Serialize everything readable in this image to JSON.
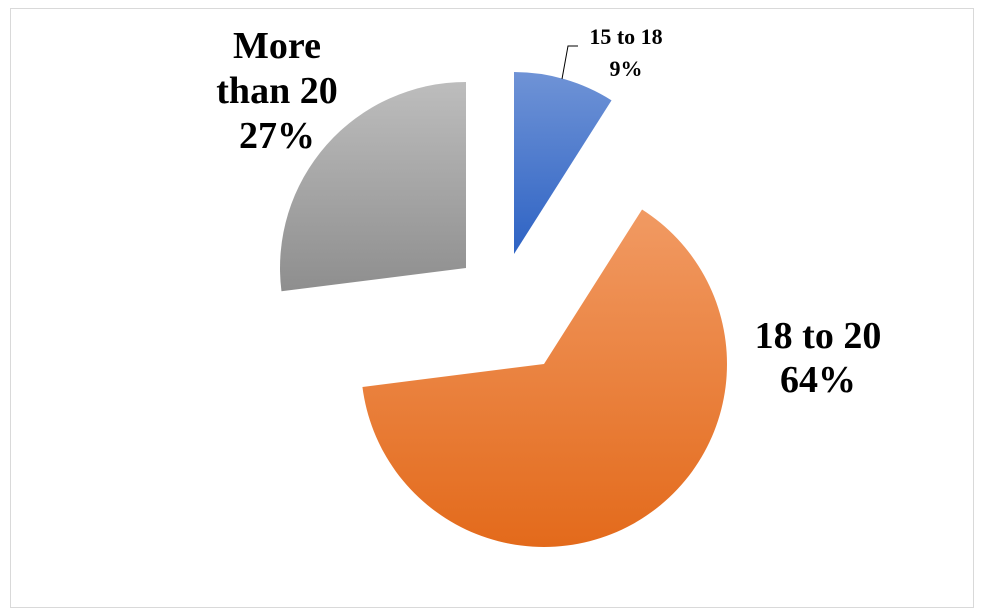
{
  "chart_data": {
    "type": "pie",
    "exploded": true,
    "title": "",
    "slices": [
      {
        "label": "15 to 18",
        "percent_label": "9%",
        "value": 9,
        "color": "#4472c4"
      },
      {
        "label": "18 to 20",
        "percent_label": "64%",
        "value": 64,
        "color": "#ed7d31"
      },
      {
        "label": "More than 20",
        "percent_label": "27%",
        "value": 27,
        "color": "#a5a5a5"
      }
    ],
    "legend": "none",
    "data_labels": "outside"
  }
}
